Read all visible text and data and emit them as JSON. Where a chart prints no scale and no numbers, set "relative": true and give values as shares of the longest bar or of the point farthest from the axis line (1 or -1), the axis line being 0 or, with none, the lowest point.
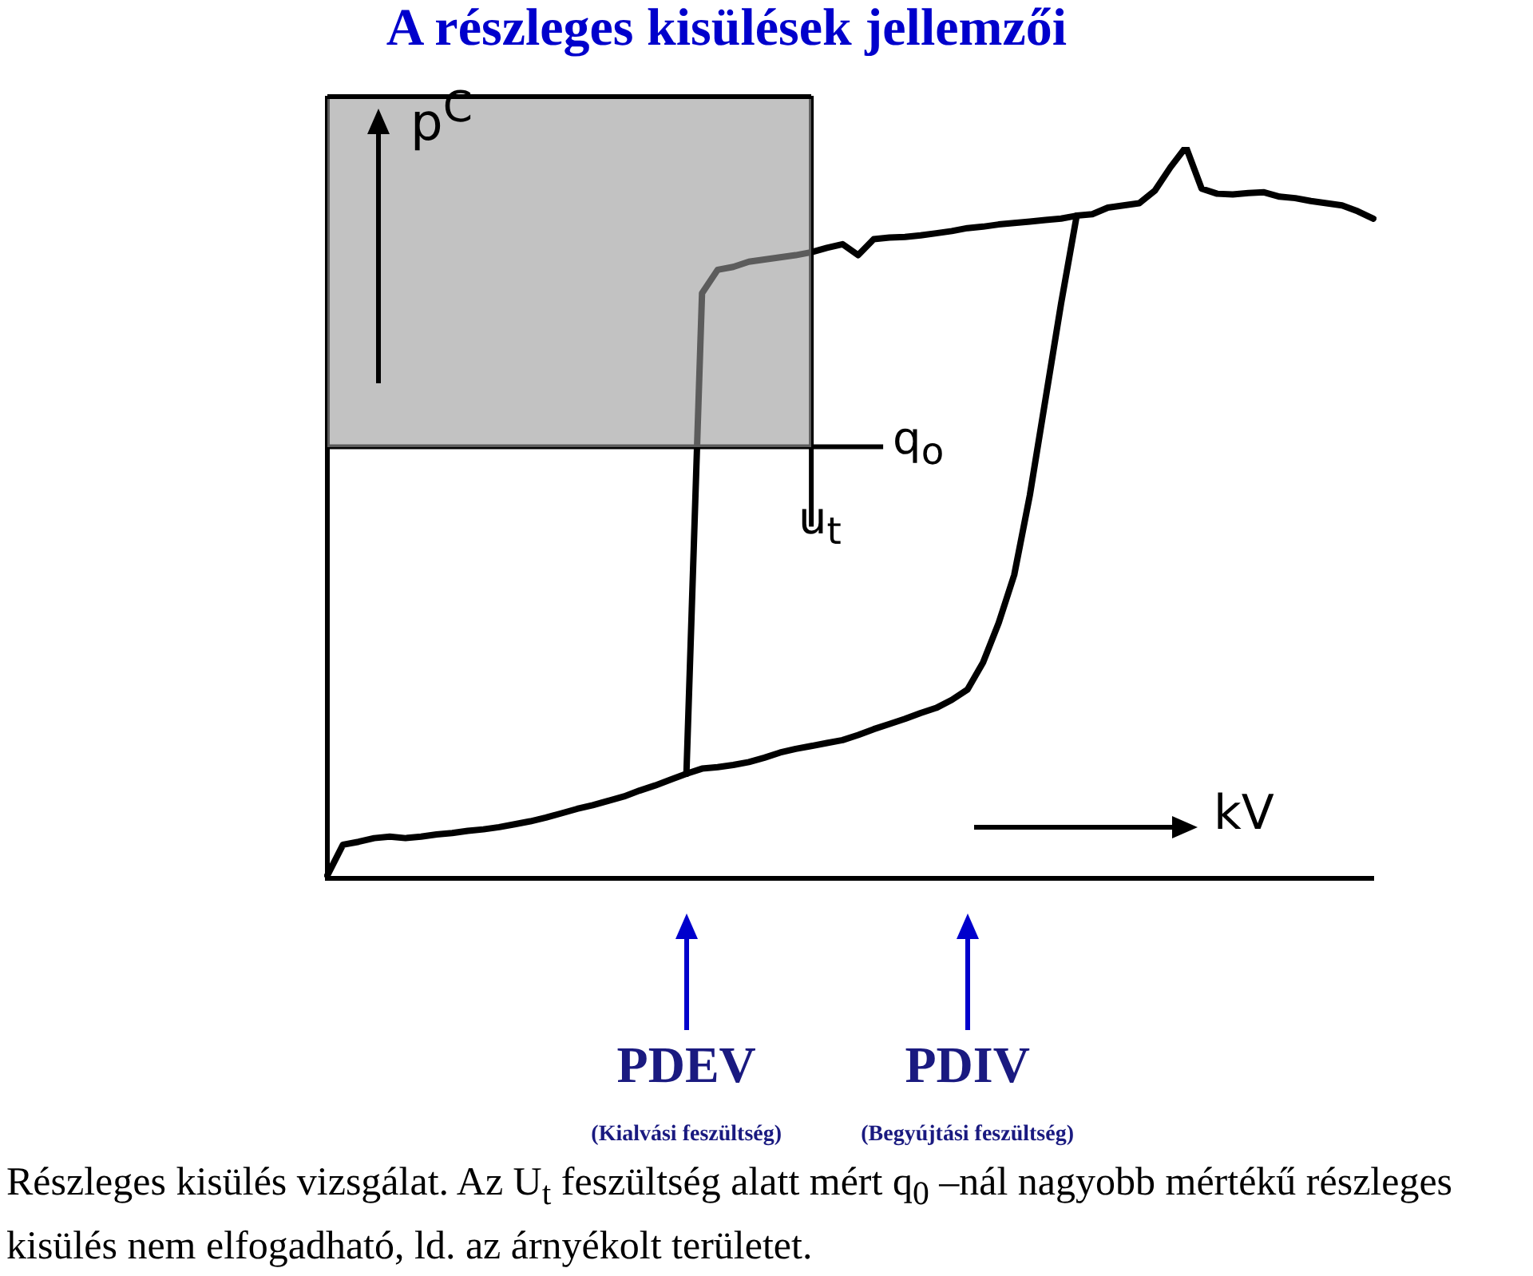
{
  "chart_data": {
    "type": "line",
    "title": "A részleges kisülések jellemzői",
    "xlabel": "kV",
    "ylabel": "p$^{C}$",
    "relative": true,
    "grid": false,
    "legend": false,
    "marker": "none",
    "line_style": "solid",
    "categories": [
      null,
      null,
      null,
      null,
      null,
      null,
      null,
      null,
      null,
      null,
      null,
      null,
      null,
      null,
      null,
      null,
      null,
      null,
      null,
      null,
      null,
      null,
      null,
      "PDEV",
      null,
      null,
      null,
      null,
      null,
      null,
      null,
      null,
      null,
      null,
      null,
      null,
      null,
      null,
      null,
      null,
      null,
      "PDIV",
      null,
      null,
      null,
      null,
      null,
      null,
      null,
      null,
      null,
      null,
      null,
      null,
      null,
      null,
      null,
      null,
      null,
      null,
      null,
      null,
      null,
      null,
      null,
      null,
      null,
      null
    ],
    "series": [
      {
        "color": "#000000",
        "values": [
          0.004,
          0.046,
          0.05,
          0.055,
          0.057,
          0.055,
          0.057,
          0.06,
          0.062,
          0.065,
          0.067,
          0.07,
          0.074,
          0.078,
          0.083,
          0.089,
          0.095,
          0.1,
          0.106,
          0.112,
          0.12,
          0.127,
          0.135,
          0.143,
          0.15,
          0.152,
          0.155,
          0.159,
          0.165,
          0.172,
          0.177,
          0.181,
          0.185,
          0.189,
          0.196,
          0.204,
          0.211,
          0.218,
          0.226,
          0.233,
          0.244,
          0.258,
          0.295,
          0.349,
          0.415,
          0.524,
          0.655,
          0.786,
          0.906,
          null,
          null,
          null,
          null,
          null,
          null,
          null,
          null,
          null,
          null,
          null,
          null,
          null,
          null,
          null,
          null,
          null,
          null,
          null
        ]
      },
      {
        "color": "#000000",
        "values": [
          null,
          null,
          null,
          null,
          null,
          null,
          null,
          null,
          null,
          null,
          null,
          null,
          null,
          null,
          null,
          null,
          null,
          null,
          null,
          null,
          null,
          null,
          null,
          0.143,
          0.8,
          0.832,
          0.836,
          0.843,
          0.846,
          0.849,
          0.852,
          0.856,
          0.862,
          0.867,
          0.852,
          0.874,
          0.876,
          0.877,
          0.879,
          0.882,
          0.885,
          0.889,
          0.891,
          0.894,
          0.896,
          0.898,
          0.9,
          0.902,
          0.906,
          0.908,
          0.917,
          0.92,
          0.923,
          0.94,
          0.972,
          1,
          0.943,
          0.936,
          0.935,
          0.937,
          0.938,
          0.932,
          0.93,
          0.926,
          0.923,
          0.92,
          0.912,
          0.902
        ]
      }
    ],
    "ref_lines": [
      {
        "axis": "y",
        "value": 0.59,
        "label": "q$_{o}$",
        "color": "#000000"
      }
    ],
    "annotations": [
      "(Kialvási feszültség)",
      "(Begyújtási feszültség)",
      "u$_{t}$",
      "Részleges kisülés vizsgálat. Az U$_{t}$ feszültség alatt mért q$_{0}$ –nál nagyobb mértékű részleges kisülés nem elfogadható, ld. az árnyékolt területet."
    ]
  }
}
